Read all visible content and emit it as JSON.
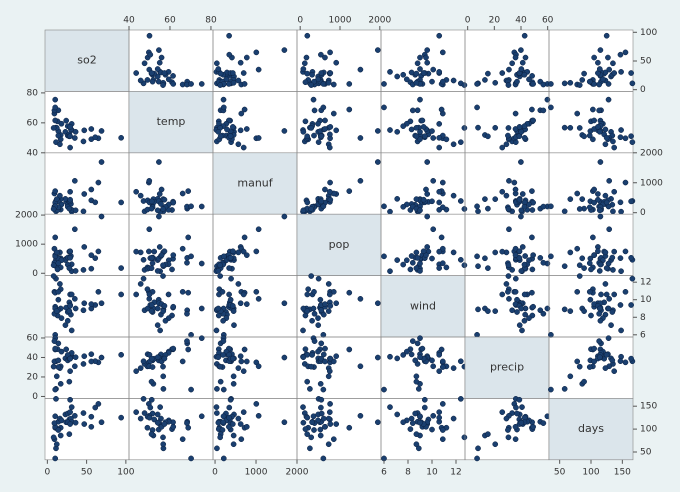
{
  "chart_data": {
    "type": "scatter-matrix",
    "variables": [
      {
        "name": "so2",
        "lim": [
          -3,
          104
        ],
        "ticks": [
          0,
          50,
          100
        ],
        "values": [
          46,
          11,
          24,
          47,
          11,
          31,
          23,
          65,
          26,
          9,
          17,
          17,
          35,
          56,
          10,
          28,
          14,
          14,
          13,
          30,
          10,
          10,
          16,
          29,
          18,
          9,
          31,
          14,
          69,
          10,
          61,
          94,
          26,
          28,
          12,
          29,
          56,
          29,
          8,
          36
        ]
      },
      {
        "name": "temp",
        "lim": [
          40,
          81
        ],
        "ticks": [
          40,
          60,
          80
        ],
        "values": [
          47.6,
          56.8,
          61.5,
          55.0,
          47.1,
          55.2,
          54.0,
          49.7,
          51.5,
          66.2,
          51.9,
          49.0,
          49.9,
          49.1,
          68.9,
          52.3,
          68.4,
          54.5,
          61.0,
          55.6,
          61.6,
          75.5,
          45.7,
          43.5,
          59.4,
          68.3,
          59.3,
          51.5,
          54.6,
          70.3,
          50.4,
          50.0,
          57.8,
          51.0,
          56.7,
          51.1,
          55.9,
          57.3,
          56.6,
          54.0
        ]
      },
      {
        "name": "manuf",
        "lim": [
          -50,
          2000
        ],
        "ticks": [
          0,
          1000,
          2000
        ],
        "values": [
          44,
          46,
          368,
          625,
          391,
          35,
          462,
          1007,
          266,
          641,
          454,
          104,
          1064,
          412,
          721,
          361,
          136,
          381,
          91,
          291,
          337,
          207,
          569,
          699,
          275,
          204,
          96,
          181,
          1692,
          213,
          347,
          343,
          197,
          137,
          453,
          379,
          775,
          434,
          125,
          80
        ]
      },
      {
        "name": "pop",
        "lim": [
          -80,
          2030
        ],
        "ticks": [
          0,
          1000,
          2000
        ],
        "values": [
          116,
          244,
          497,
          905,
          463,
          71,
          453,
          751,
          540,
          844,
          515,
          201,
          1513,
          158,
          1233,
          746,
          529,
          507,
          132,
          593,
          624,
          335,
          717,
          744,
          448,
          361,
          308,
          347,
          1950,
          582,
          520,
          179,
          299,
          176,
          716,
          531,
          622,
          757,
          277,
          80
        ]
      },
      {
        "name": "wind",
        "lim": [
          5.75,
          12.75
        ],
        "ticks": [
          6,
          8,
          10,
          12
        ],
        "values": [
          8.8,
          8.9,
          9.1,
          9.6,
          12.4,
          6.5,
          7.1,
          10.9,
          8.6,
          10.9,
          9.0,
          11.2,
          10.1,
          9.0,
          10.8,
          9.7,
          8.8,
          10.0,
          8.2,
          8.3,
          9.2,
          9.0,
          11.8,
          10.6,
          7.9,
          8.4,
          10.6,
          10.9,
          9.6,
          6.0,
          9.4,
          10.6,
          7.6,
          8.7,
          8.7,
          9.4,
          9.5,
          9.3,
          12.7,
          9.0
        ]
      },
      {
        "name": "precip",
        "lim": [
          -2,
          61
        ],
        "ticks": [
          0,
          20,
          40,
          60
        ],
        "values": [
          33.36,
          7.77,
          48.34,
          41.31,
          36.11,
          40.75,
          39.04,
          34.99,
          37.01,
          35.94,
          12.95,
          30.85,
          30.96,
          43.37,
          48.19,
          38.74,
          54.47,
          37.0,
          48.52,
          43.11,
          49.1,
          59.8,
          29.07,
          25.94,
          46.0,
          56.77,
          44.68,
          30.18,
          39.93,
          7.05,
          36.22,
          42.75,
          42.59,
          15.17,
          20.66,
          38.79,
          35.89,
          38.89,
          30.58,
          40.25
        ]
      },
      {
        "name": "days",
        "lim": [
          33,
          167
        ],
        "ticks": [
          50,
          100,
          150
        ],
        "values": [
          135,
          58,
          115,
          111,
          166,
          148,
          132,
          155,
          134,
          78,
          86,
          103,
          129,
          127,
          103,
          121,
          116,
          99,
          100,
          123,
          105,
          128,
          123,
          137,
          119,
          113,
          116,
          98,
          115,
          36,
          147,
          125,
          115,
          89,
          67,
          164,
          105,
          111,
          82,
          114
        ]
      }
    ],
    "color": "#1a3f6f"
  }
}
